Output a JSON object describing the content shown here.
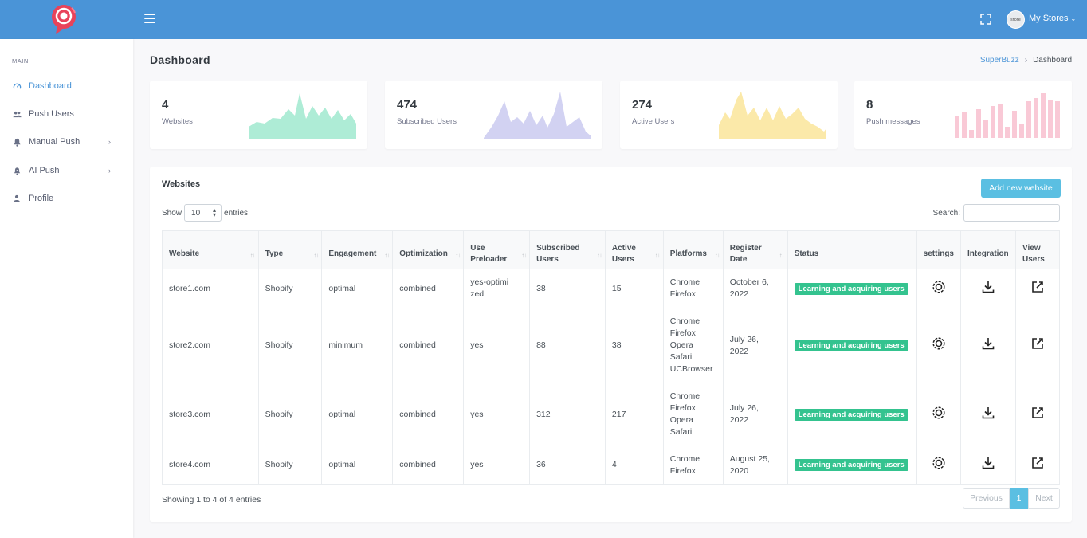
{
  "topbar": {
    "store_menu_label": "My Stores",
    "avatar_text": "store"
  },
  "sidebar": {
    "menu_title": "MAIN",
    "items": [
      {
        "label": "Dashboard",
        "icon": "speedometer-icon"
      },
      {
        "label": "Push Users",
        "icon": "users-icon"
      },
      {
        "label": "Manual Push",
        "icon": "bell-icon"
      },
      {
        "label": "AI Push",
        "icon": "bell-ring-icon"
      },
      {
        "label": "Profile",
        "icon": "user-icon"
      }
    ]
  },
  "page": {
    "title": "Dashboard",
    "breadcrumb": [
      "SuperBuzz",
      "Dashboard"
    ]
  },
  "stats": [
    {
      "value": "4",
      "label": "Websites",
      "color": "#aeecd6"
    },
    {
      "value": "474",
      "label": "Subscribed Users",
      "color": "#d2d2f2"
    },
    {
      "value": "274",
      "label": "Active Users",
      "color": "#fbe9a9"
    },
    {
      "value": "8",
      "label": "Push messages",
      "color": "#f9c9d6"
    }
  ],
  "websites": {
    "title": "Websites",
    "add_button": "Add new website",
    "show_label": "Show",
    "entries_value": "10",
    "entries_label": "entries",
    "search_label": "Search:",
    "columns": [
      "Website",
      "Type",
      "Engagement",
      "Optimization",
      "Use Preloader",
      "Subscribed Users",
      "Active Users",
      "Platforms",
      "Register Date",
      "Status",
      "settings",
      "Integration",
      "View Users"
    ],
    "rows": [
      {
        "website": "store1.com",
        "type": "Shopify",
        "engagement": "optimal",
        "optimization": "combined",
        "preloader": "yes-optimized",
        "subscribed": "38",
        "active": "15",
        "platforms": [
          "Chrome",
          "Firefox"
        ],
        "date": "October 6, 2022",
        "status": "Learning and acquiring users"
      },
      {
        "website": "store2.com",
        "type": "Shopify",
        "engagement": "minimum",
        "optimization": "combined",
        "preloader": "yes",
        "subscribed": "88",
        "active": "38",
        "platforms": [
          "Chrome",
          "Firefox",
          "Opera",
          "Safari",
          "UCBrowser"
        ],
        "date": "July 26, 2022",
        "status": "Learning and acquiring users"
      },
      {
        "website": "store3.com",
        "type": "Shopify",
        "engagement": "optimal",
        "optimization": "combined",
        "preloader": "yes",
        "subscribed": "312",
        "active": "217",
        "platforms": [
          "Chrome",
          "Firefox",
          "Opera",
          "Safari"
        ],
        "date": "July 26, 2022",
        "status": "Learning and acquiring users"
      },
      {
        "website": "store4.com",
        "type": "Shopify",
        "engagement": "optimal",
        "optimization": "combined",
        "preloader": "yes",
        "subscribed": "36",
        "active": "4",
        "platforms": [
          "Chrome",
          "Firefox"
        ],
        "date": "August 25, 2020",
        "status": "Learning and acquiring users"
      }
    ],
    "info": "Showing 1 to 4 of 4 entries",
    "pagination": {
      "previous": "Previous",
      "current": "1",
      "next": "Next"
    }
  }
}
